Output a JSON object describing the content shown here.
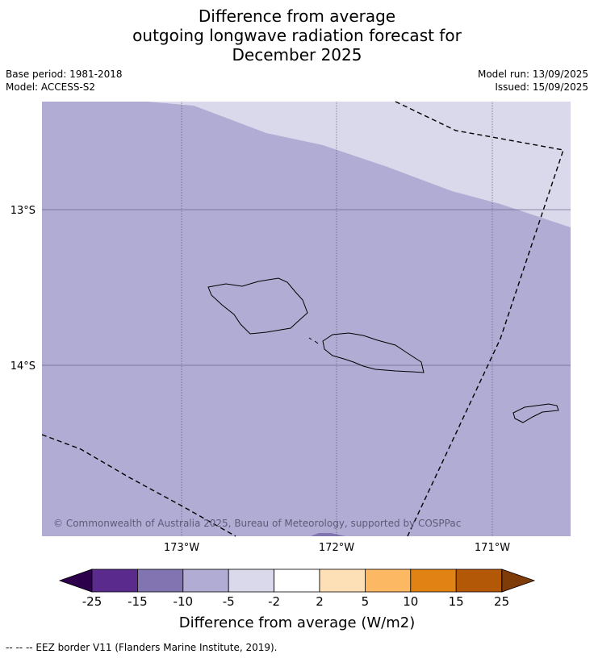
{
  "title": {
    "line1": "Difference from average",
    "line2": "outgoing longwave radiation forecast for",
    "line3": "December 2025"
  },
  "meta": {
    "base_period": "Base period: 1981-2018",
    "model": "Model: ACCESS-S2",
    "model_run": "Model run: 13/09/2025",
    "issued": "Issued: 15/09/2025"
  },
  "map": {
    "lat_labels": [
      "13°S",
      "14°S"
    ],
    "lon_labels": [
      "173°W",
      "172°W",
      "171°W"
    ],
    "copyright": "© Commonwealth of Australia 2025, Bureau of Meteorology, supported by COSPPac",
    "region_colors": {
      "main": "#b1acd3",
      "light": "#d9d9eb"
    }
  },
  "colorbar": {
    "ticks": [
      "-25",
      "-15",
      "-10",
      "-5",
      "-2",
      "2",
      "5",
      "10",
      "15",
      "25"
    ],
    "colors": [
      "#5a2a8d",
      "#8274b1",
      "#b1acd3",
      "#d9d9eb",
      "#ffffff",
      "#fee0b6",
      "#fdb863",
      "#e08214",
      "#b35806"
    ],
    "low_extend_color": "#2d004b",
    "high_extend_color": "#7f3b08",
    "label": "Difference from average (W/m2)"
  },
  "footnote": "-- -- -- EEZ border V11 (Flanders Marine Institute, 2019)."
}
